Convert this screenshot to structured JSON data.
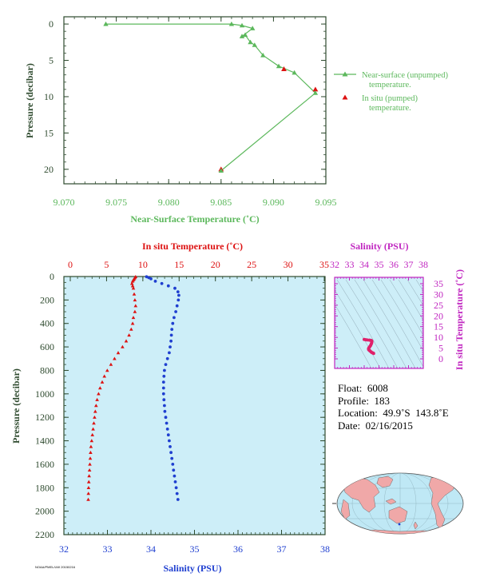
{
  "colors": {
    "unpumped": "#5cb85c",
    "pumped": "#dd1111",
    "temperature": "#dd1111",
    "salinity": "#1f3fd0",
    "ts_plot": "#c026c0",
    "ts_points": "#e0206a",
    "axis_text": "#2e4a2e",
    "panel_bg": "#cdeef8",
    "map_land": "#f0a8a8",
    "map_ocean": "#bfe8f5"
  },
  "info": {
    "float": "Float:  6008",
    "profile": "Profile:  183",
    "location": "Location:  49.9˚S  143.8˚E",
    "date": "Date:  02/16/2015"
  },
  "footer": "NOAA/PMEL/UW 20150216",
  "chart_data": [
    {
      "type": "line",
      "xlabel": "Near-Surface Temperature (˚C)",
      "ylabel": "Pressure (decibar)",
      "xlim": [
        9.07,
        9.095
      ],
      "ylim": [
        22,
        -1
      ],
      "xticks": [
        "9.070",
        "9.075",
        "9.080",
        "9.085",
        "9.090",
        "9.095"
      ],
      "yticks": [
        "0",
        "5",
        "10",
        "15",
        "20"
      ],
      "legend_position": "right",
      "series": [
        {
          "name": "Near-surface (unpumped) temperature.",
          "marker": "triangle-line",
          "x": [
            9.074,
            9.086,
            9.087,
            9.088,
            9.087,
            9.0873,
            9.0878,
            9.0882,
            9.089,
            9.0905,
            9.092,
            9.094,
            9.085
          ],
          "y": [
            0,
            0,
            0.2,
            0.6,
            1.7,
            1.5,
            2.5,
            2.9,
            4.3,
            5.8,
            6.7,
            9.5,
            20.2
          ]
        },
        {
          "name": "In situ (pumped) temperature.",
          "marker": "triangle",
          "x": [
            9.091,
            9.094,
            9.085
          ],
          "y": [
            6.2,
            9.0,
            20.0
          ]
        }
      ]
    },
    {
      "type": "scatter",
      "title_top": "In situ Temperature (˚C)",
      "xlabel": "Salinity (PSU)",
      "ylabel": "Pressure (decibar)",
      "temp_xlim": [
        0,
        35
      ],
      "temp_ticks": [
        "0",
        "5",
        "10",
        "15",
        "20",
        "25",
        "30",
        "35"
      ],
      "sal_xlim": [
        32,
        38
      ],
      "sal_ticks": [
        "32",
        "33",
        "34",
        "35",
        "36",
        "37",
        "38"
      ],
      "ylim": [
        2200,
        0
      ],
      "yticks": [
        "0",
        "200",
        "400",
        "600",
        "800",
        "1000",
        "1200",
        "1400",
        "1600",
        "1800",
        "2000",
        "2200"
      ],
      "series": [
        {
          "name": "In situ Temperature",
          "pressure": [
            2,
            10,
            20,
            30,
            40,
            60,
            80,
            100,
            150,
            200,
            250,
            300,
            350,
            400,
            450,
            500,
            550,
            600,
            650,
            700,
            750,
            800,
            850,
            900,
            950,
            1000,
            1050,
            1100,
            1150,
            1200,
            1250,
            1300,
            1350,
            1400,
            1450,
            1500,
            1550,
            1600,
            1650,
            1700,
            1750,
            1800,
            1850,
            1900
          ],
          "temperature": [
            9.0,
            8.9,
            8.8,
            8.7,
            8.6,
            8.5,
            8.6,
            8.7,
            8.8,
            8.9,
            9.0,
            8.9,
            8.7,
            8.6,
            8.4,
            8.1,
            7.7,
            7.2,
            6.6,
            6.1,
            5.6,
            5.1,
            4.7,
            4.4,
            4.1,
            3.9,
            3.7,
            3.55,
            3.45,
            3.35,
            3.25,
            3.15,
            3.05,
            2.95,
            2.85,
            2.8,
            2.75,
            2.7,
            2.65,
            2.6,
            2.55,
            2.52,
            2.5,
            2.48
          ]
        },
        {
          "name": "Salinity",
          "pressure": [
            2,
            10,
            20,
            40,
            60,
            80,
            100,
            130,
            160,
            200,
            250,
            300,
            350,
            400,
            450,
            500,
            550,
            600,
            650,
            700,
            750,
            800,
            850,
            900,
            950,
            1000,
            1050,
            1100,
            1150,
            1200,
            1250,
            1300,
            1350,
            1400,
            1450,
            1500,
            1550,
            1600,
            1650,
            1700,
            1750,
            1800,
            1850,
            1900
          ],
          "salinity": [
            33.9,
            33.95,
            34.0,
            34.1,
            34.25,
            34.4,
            34.55,
            34.62,
            34.64,
            34.63,
            34.6,
            34.57,
            34.53,
            34.5,
            34.48,
            34.47,
            34.46,
            34.44,
            34.42,
            34.38,
            34.34,
            34.31,
            34.3,
            34.29,
            34.29,
            34.29,
            34.3,
            34.31,
            34.32,
            34.34,
            34.36,
            34.38,
            34.4,
            34.42,
            34.44,
            34.46,
            34.48,
            34.5,
            34.52,
            34.54,
            34.56,
            34.58,
            34.6,
            34.62
          ]
        }
      ]
    },
    {
      "type": "scatter",
      "xlabel": "Salinity (PSU)",
      "ylabel": "In situ Temperature (˚C)",
      "xlim": [
        32,
        38
      ],
      "ylim": [
        0,
        35
      ],
      "xticks": [
        "32",
        "33",
        "34",
        "35",
        "36",
        "37",
        "38"
      ],
      "yticks": [
        "0",
        "5",
        "10",
        "15",
        "20",
        "25",
        "30",
        "35"
      ],
      "series": [
        {
          "name": "T-S",
          "salinity": [
            34.0,
            34.1,
            34.2,
            34.35,
            34.45,
            34.5,
            34.52,
            34.5,
            34.47,
            34.43,
            34.38,
            34.33,
            34.3,
            34.3,
            34.34,
            34.4,
            34.47,
            34.53,
            34.6,
            34.64
          ],
          "temperature": [
            9.0,
            8.9,
            8.8,
            8.7,
            8.6,
            8.4,
            8.0,
            7.4,
            6.8,
            6.2,
            5.7,
            5.2,
            4.8,
            4.4,
            4.0,
            3.6,
            3.2,
            2.9,
            2.7,
            2.5
          ]
        }
      ]
    }
  ]
}
